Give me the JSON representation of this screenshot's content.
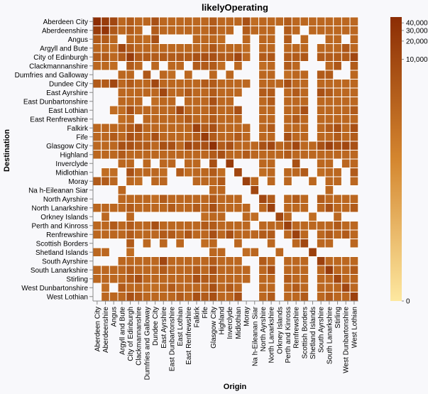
{
  "chart_data": {
    "type": "heatmap",
    "title": "likelyOperating",
    "xlabel": "Origin",
    "ylabel": "Destination",
    "categories": [
      "Aberdeen City",
      "Aberdeenshire",
      "Angus",
      "Argyll and Bute",
      "City of Edinburgh",
      "Clackmannanshire",
      "Dumfries and Galloway",
      "Dundee City",
      "East Ayrshire",
      "East Dunbartonshire",
      "East Lothian",
      "East Renfrewshire",
      "Falkirk",
      "Fife",
      "Glasgow City",
      "Highland",
      "Inverclyde",
      "Midlothian",
      "Moray",
      "Na h-Eileanan Siar",
      "North Ayrshire",
      "North Lanarkshire",
      "Orkney Islands",
      "Perth and Kinross",
      "Renfrewshire",
      "Scottish Borders",
      "Shetland Islands",
      "South Ayrshire",
      "South Lanarkshire",
      "Stirling",
      "West Dunbartonshire",
      "West Lothian"
    ],
    "color_scale": "symlog",
    "color_domain": [
      0,
      50000
    ],
    "color_range": [
      "#fde8a0",
      "#d4862f",
      "#8c2d04"
    ],
    "legend": {
      "title": "",
      "ticks": [
        "40,000",
        "30,000",
        "20,000",
        "10,000",
        "0"
      ],
      "tick_values": [
        40000,
        30000,
        20000,
        10000,
        0
      ],
      "placement": "right"
    },
    "matrix": [
      [
        48000,
        20000,
        10000,
        1500,
        3000,
        1500,
        1500,
        6000,
        1500,
        1500,
        1500,
        1500,
        1500,
        1500,
        3000,
        1500,
        1500,
        1500,
        6000,
        1000,
        1500,
        1500,
        1500,
        3000,
        1500,
        1500,
        1500,
        1500,
        1500,
        1500,
        1500,
        1500
      ],
      [
        20000,
        30000,
        4000,
        1500,
        3000,
        1500,
        0,
        3000,
        1500,
        1500,
        1500,
        1500,
        1500,
        1500,
        3000,
        1500,
        1500,
        0,
        3000,
        1500,
        1500,
        1500,
        0,
        3000,
        1500,
        0,
        1500,
        1500,
        1500,
        1500,
        1500,
        1500
      ],
      [
        3000,
        3000,
        1500,
        0,
        1500,
        1500,
        1000,
        6000,
        0,
        0,
        0,
        0,
        1500,
        1500,
        1500,
        1000,
        0,
        0,
        1500,
        0,
        1500,
        1500,
        0,
        3000,
        0,
        1500,
        0,
        0,
        1500,
        1500,
        0,
        1500
      ],
      [
        1500,
        1500,
        1000,
        10000,
        3000,
        1500,
        1500,
        1500,
        1500,
        1500,
        1500,
        1500,
        1500,
        1500,
        4000,
        1500,
        1500,
        1500,
        1000,
        0,
        1500,
        1500,
        0,
        1500,
        1500,
        1500,
        0,
        1500,
        1500,
        1500,
        4000,
        1500
      ],
      [
        3000,
        3000,
        1500,
        3000,
        20000,
        3000,
        3000,
        3000,
        3000,
        3000,
        4000,
        3000,
        6000,
        6000,
        6000,
        3000,
        3000,
        10000,
        1500,
        0,
        3000,
        4000,
        0,
        3000,
        3000,
        4000,
        0,
        3000,
        3000,
        3000,
        3000,
        10000
      ],
      [
        1500,
        1500,
        1000,
        0,
        3000,
        1500,
        0,
        1500,
        0,
        1500,
        1500,
        0,
        3000,
        3000,
        3000,
        1000,
        0,
        1500,
        0,
        0,
        1000,
        1500,
        0,
        3000,
        1500,
        0,
        0,
        0,
        1500,
        4000,
        0,
        3000
      ],
      [
        0,
        0,
        0,
        1500,
        1500,
        0,
        4000,
        0,
        1500,
        1000,
        0,
        1500,
        0,
        0,
        1500,
        0,
        1500,
        0,
        0,
        0,
        1500,
        1500,
        0,
        1000,
        1500,
        1500,
        0,
        3000,
        3000,
        0,
        0,
        1500
      ],
      [
        3000,
        3000,
        10000,
        1500,
        3000,
        1500,
        1500,
        10000,
        1500,
        1500,
        1500,
        1500,
        1500,
        3000,
        3000,
        1500,
        1500,
        1500,
        1500,
        0,
        1500,
        1500,
        1500,
        6000,
        1500,
        1500,
        0,
        1500,
        1500,
        1500,
        1500,
        1500
      ],
      [
        0,
        0,
        0,
        1500,
        1500,
        1500,
        1500,
        1500,
        10000,
        1500,
        1500,
        3000,
        1500,
        1500,
        3000,
        1500,
        1500,
        1500,
        0,
        0,
        3000,
        3000,
        0,
        1500,
        3000,
        1500,
        0,
        6000,
        3000,
        1500,
        1500,
        1500
      ],
      [
        0,
        0,
        0,
        1500,
        1500,
        1500,
        0,
        1000,
        1500,
        1500,
        0,
        1500,
        1500,
        1500,
        6000,
        1500,
        1500,
        0,
        0,
        0,
        1500,
        3000,
        0,
        1500,
        1500,
        1500,
        0,
        1500,
        1500,
        1500,
        1500,
        1500
      ],
      [
        0,
        0,
        1000,
        1000,
        6000,
        1500,
        1500,
        1500,
        1500,
        1500,
        10000,
        1500,
        1500,
        1500,
        3000,
        1500,
        1500,
        6000,
        0,
        0,
        1500,
        1500,
        0,
        1500,
        1500,
        6000,
        0,
        1500,
        1500,
        1500,
        1500,
        3000
      ],
      [
        0,
        0,
        0,
        1000,
        1500,
        0,
        1500,
        1500,
        1500,
        1500,
        1500,
        3000,
        1500,
        1500,
        3000,
        1500,
        1500,
        1500,
        0,
        0,
        1500,
        1500,
        0,
        1500,
        3000,
        1500,
        0,
        1500,
        1500,
        1500,
        1500,
        1500
      ],
      [
        1500,
        1500,
        1500,
        1500,
        3000,
        6000,
        1500,
        1500,
        1500,
        1500,
        1500,
        1500,
        15000,
        3000,
        6000,
        1500,
        1500,
        1500,
        1500,
        0,
        1500,
        3000,
        0,
        1500,
        1500,
        1500,
        0,
        1500,
        3000,
        6000,
        1500,
        6000
      ],
      [
        1500,
        1500,
        3000,
        1500,
        6000,
        3000,
        1500,
        6000,
        1500,
        1500,
        1500,
        1500,
        3000,
        20000,
        3000,
        1500,
        1500,
        3000,
        1500,
        0,
        1500,
        1500,
        0,
        6000,
        1500,
        1500,
        0,
        1500,
        1500,
        3000,
        1500,
        3000
      ],
      [
        1500,
        1500,
        1500,
        6000,
        6000,
        3000,
        3000,
        1500,
        6000,
        6000,
        1500,
        10000,
        6000,
        6000,
        40000,
        3000,
        6000,
        1500,
        1500,
        1500,
        6000,
        10000,
        1500,
        3000,
        10000,
        1500,
        1500,
        6000,
        15000,
        6000,
        10000,
        6000
      ],
      [
        1500,
        1500,
        1500,
        3000,
        1500,
        1500,
        1500,
        1500,
        1500,
        1500,
        1500,
        1500,
        1500,
        1500,
        3000,
        6000,
        1500,
        1500,
        3000,
        1500,
        1500,
        1500,
        1500,
        3000,
        1500,
        1500,
        1500,
        1500,
        1500,
        1500,
        1500,
        1500
      ],
      [
        0,
        0,
        0,
        1500,
        1500,
        0,
        1500,
        0,
        1500,
        1500,
        0,
        1500,
        1500,
        0,
        6000,
        0,
        20000,
        0,
        0,
        0,
        1500,
        1500,
        0,
        0,
        6000,
        0,
        0,
        1500,
        1500,
        0,
        1500,
        1500
      ],
      [
        0,
        1000,
        1000,
        0,
        6000,
        1500,
        1500,
        1500,
        1000,
        0,
        3000,
        1000,
        1500,
        1500,
        3000,
        1000,
        0,
        10000,
        0,
        0,
        1000,
        1500,
        0,
        1500,
        1500,
        3000,
        0,
        1000,
        1500,
        1500,
        0,
        3000
      ],
      [
        3000,
        3000,
        1500,
        0,
        1500,
        1000,
        0,
        1500,
        1500,
        0,
        0,
        0,
        1500,
        1500,
        1500,
        3000,
        0,
        0,
        15000,
        1500,
        0,
        1500,
        0,
        1500,
        0,
        0,
        1500,
        0,
        1500,
        1500,
        0,
        1500
      ],
      [
        0,
        0,
        0,
        1500,
        0,
        0,
        0,
        0,
        0,
        0,
        0,
        0,
        0,
        0,
        1500,
        1500,
        0,
        0,
        0,
        10000,
        0,
        0,
        0,
        0,
        0,
        0,
        0,
        0,
        1500,
        0,
        0,
        0
      ],
      [
        0,
        0,
        0,
        1500,
        1500,
        1500,
        1500,
        1000,
        3000,
        1500,
        1500,
        1500,
        1500,
        1500,
        3000,
        1500,
        1500,
        1500,
        0,
        0,
        10000,
        3000,
        0,
        1500,
        3000,
        1500,
        0,
        3000,
        1500,
        1500,
        1500,
        1500
      ],
      [
        1500,
        1500,
        1500,
        1500,
        3000,
        1500,
        1500,
        1500,
        1500,
        3000,
        1500,
        1500,
        3000,
        1500,
        6000,
        1500,
        1500,
        1500,
        1500,
        0,
        1500,
        15000,
        0,
        1500,
        1500,
        1500,
        0,
        1500,
        6000,
        1500,
        1500,
        3000
      ],
      [
        0,
        1500,
        0,
        0,
        1500,
        0,
        0,
        0,
        0,
        0,
        0,
        0,
        0,
        1000,
        1500,
        1500,
        0,
        0,
        1500,
        1000,
        0,
        0,
        10000,
        1500,
        0,
        0,
        1000,
        0,
        0,
        1500,
        0,
        0
      ],
      [
        1500,
        1500,
        3000,
        1500,
        3000,
        1500,
        1500,
        6000,
        1500,
        1500,
        1500,
        1500,
        1500,
        3000,
        3000,
        1500,
        1500,
        1500,
        1500,
        0,
        1500,
        1500,
        1500,
        15000,
        1500,
        1500,
        1500,
        1500,
        1500,
        3000,
        1500,
        1500
      ],
      [
        1500,
        1500,
        1500,
        1500,
        3000,
        1500,
        1500,
        1500,
        3000,
        3000,
        1500,
        4000,
        1500,
        1500,
        6000,
        1500,
        6000,
        1500,
        1500,
        1500,
        3000,
        3000,
        0,
        1500,
        15000,
        1500,
        0,
        1500,
        3000,
        1500,
        3000,
        1500
      ],
      [
        0,
        0,
        0,
        0,
        3000,
        0,
        1500,
        0,
        1500,
        0,
        1500,
        0,
        0,
        1000,
        1500,
        0,
        0,
        1500,
        0,
        0,
        0,
        1500,
        0,
        0,
        1500,
        10000,
        0,
        1500,
        1500,
        0,
        0,
        1500
      ],
      [
        1500,
        1500,
        0,
        0,
        1000,
        0,
        0,
        0,
        0,
        0,
        0,
        0,
        0,
        0,
        1500,
        1500,
        0,
        0,
        1000,
        1500,
        0,
        0,
        1500,
        0,
        0,
        0,
        15000,
        0,
        0,
        0,
        0,
        0
      ],
      [
        0,
        0,
        0,
        1500,
        1500,
        1500,
        1500,
        1500,
        10000,
        1500,
        1500,
        1500,
        1500,
        1500,
        3000,
        1500,
        1500,
        1500,
        0,
        0,
        3000,
        1500,
        0,
        1500,
        1500,
        1500,
        0,
        15000,
        1500,
        1500,
        1500,
        1500
      ],
      [
        1500,
        1500,
        1500,
        1500,
        3000,
        1500,
        1500,
        1500,
        3000,
        1500,
        1500,
        1500,
        3000,
        1500,
        6000,
        1500,
        1500,
        1500,
        1500,
        0,
        1500,
        6000,
        0,
        1500,
        1500,
        1500,
        0,
        1500,
        20000,
        1500,
        1500,
        3000
      ],
      [
        1500,
        1500,
        1500,
        1500,
        3000,
        6000,
        1500,
        1500,
        1500,
        1500,
        1500,
        1500,
        6000,
        3000,
        3000,
        1500,
        1500,
        1500,
        1500,
        0,
        1500,
        1500,
        0,
        3000,
        1500,
        1500,
        0,
        1500,
        1500,
        10000,
        1500,
        1500
      ],
      [
        0,
        1000,
        0,
        3000,
        1500,
        1500,
        1000,
        1000,
        1500,
        3000,
        1500,
        1500,
        1500,
        1500,
        6000,
        1500,
        3000,
        1500,
        0,
        0,
        1500,
        1500,
        0,
        1500,
        3000,
        1500,
        0,
        1500,
        1500,
        1500,
        10000,
        1500
      ],
      [
        0,
        1500,
        1500,
        1500,
        6000,
        3000,
        1500,
        1500,
        1500,
        1500,
        3000,
        1500,
        6000,
        3000,
        6000,
        1500,
        1500,
        6000,
        0,
        0,
        1500,
        3000,
        0,
        1500,
        1500,
        3000,
        0,
        1500,
        3000,
        1500,
        1500,
        15000
      ]
    ]
  }
}
